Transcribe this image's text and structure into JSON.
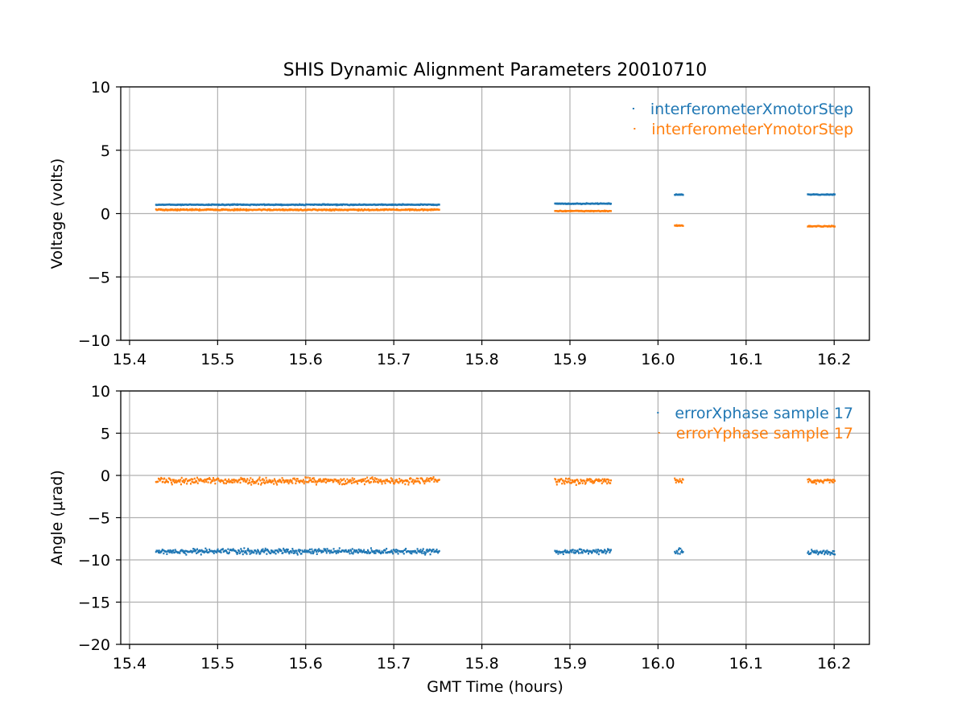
{
  "figure": {
    "title": "SHIS Dynamic Alignment Parameters 20010710",
    "xlabel": "GMT Time (hours)"
  },
  "colors": {
    "series1": "#1f77b4",
    "series2": "#ff7f0e",
    "grid": "#b0b0b0"
  },
  "chart_data": [
    {
      "type": "scatter",
      "title": "SHIS Dynamic Alignment Parameters 20010710",
      "xlabel": "",
      "ylabel": "Voltage (volts)",
      "xlim": [
        15.39,
        16.24
      ],
      "ylim": [
        -10,
        10
      ],
      "xticks": [
        "15.4",
        "15.5",
        "15.6",
        "15.7",
        "15.8",
        "15.9",
        "16.0",
        "16.1",
        "16.2"
      ],
      "yticks": [
        "10",
        "5",
        "0",
        "−5",
        "−10"
      ],
      "grid": true,
      "legend_position": "top-right",
      "series": [
        {
          "name": "interferometerXmotorStep",
          "color": "#1f77b4",
          "segments": [
            {
              "x_start": 15.43,
              "x_end": 15.752,
              "y": 0.7,
              "spread": 0.1
            },
            {
              "x_start": 15.883,
              "x_end": 15.947,
              "y": 0.78,
              "spread": 0.1
            },
            {
              "x_start": 16.019,
              "x_end": 16.029,
              "y": 1.5,
              "spread": 0.1
            },
            {
              "x_start": 16.17,
              "x_end": 16.201,
              "y": 1.5,
              "spread": 0.1
            }
          ]
        },
        {
          "name": "interferometerYmotorStep",
          "color": "#ff7f0e",
          "segments": [
            {
              "x_start": 15.43,
              "x_end": 15.752,
              "y": 0.3,
              "spread": 0.15
            },
            {
              "x_start": 15.883,
              "x_end": 15.947,
              "y": 0.2,
              "spread": 0.1
            },
            {
              "x_start": 16.019,
              "x_end": 16.029,
              "y": -0.95,
              "spread": 0.1
            },
            {
              "x_start": 16.17,
              "x_end": 16.201,
              "y": -1.0,
              "spread": 0.1
            }
          ]
        }
      ]
    },
    {
      "type": "scatter",
      "title": "",
      "xlabel": "GMT Time (hours)",
      "ylabel": "Angle (μrad)",
      "xlim": [
        15.39,
        16.24
      ],
      "ylim": [
        -20,
        10
      ],
      "xticks": [
        "15.4",
        "15.5",
        "15.6",
        "15.7",
        "15.8",
        "15.9",
        "16.0",
        "16.1",
        "16.2"
      ],
      "yticks": [
        "10",
        "5",
        "0",
        "−5",
        "−10",
        "−15",
        "−20"
      ],
      "grid": true,
      "legend_position": "top-right",
      "series": [
        {
          "name": "errorXphase sample 17",
          "color": "#1f77b4",
          "segments": [
            {
              "x_start": 15.43,
              "x_end": 15.752,
              "y": -9.0,
              "spread": 0.9
            },
            {
              "x_start": 15.883,
              "x_end": 15.947,
              "y": -9.0,
              "spread": 0.9
            },
            {
              "x_start": 16.019,
              "x_end": 16.029,
              "y": -9.0,
              "spread": 0.9
            },
            {
              "x_start": 16.17,
              "x_end": 16.201,
              "y": -9.1,
              "spread": 0.9
            }
          ]
        },
        {
          "name": "errorYphase sample 17",
          "color": "#ff7f0e",
          "segments": [
            {
              "x_start": 15.43,
              "x_end": 15.752,
              "y": -0.65,
              "spread": 1.1
            },
            {
              "x_start": 15.883,
              "x_end": 15.947,
              "y": -0.7,
              "spread": 1.0
            },
            {
              "x_start": 16.019,
              "x_end": 16.029,
              "y": -0.7,
              "spread": 1.0
            },
            {
              "x_start": 16.17,
              "x_end": 16.201,
              "y": -0.65,
              "spread": 0.8
            }
          ]
        }
      ]
    }
  ]
}
